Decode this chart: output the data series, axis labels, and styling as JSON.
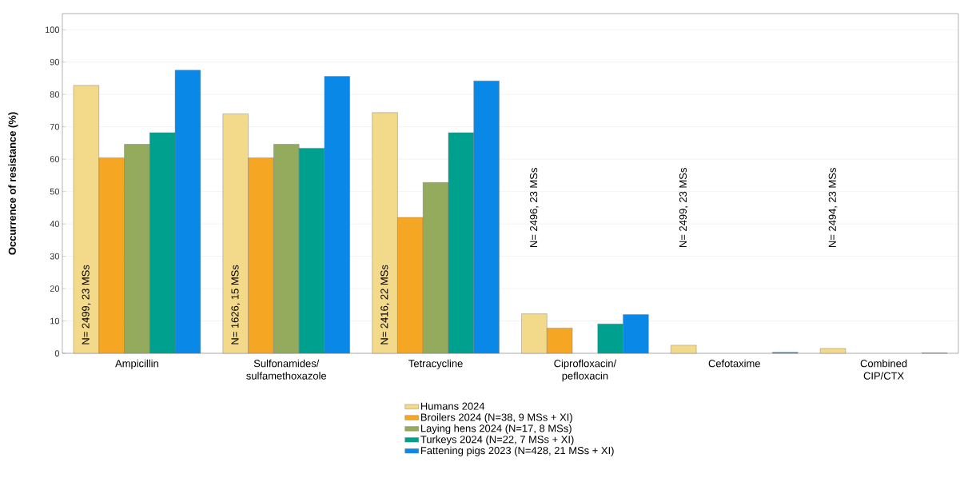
{
  "chart_data": {
    "type": "bar",
    "ylabel": "Occurrence of resistance (%)",
    "categories": [
      "Ampicillin",
      "Sulfonamides/ sulfamethoxazole",
      "Tetracycline",
      "Ciprofloxacin/ pefloxacin",
      "Cefotaxime",
      "Combined CIP/CTX"
    ],
    "series": [
      {
        "name": "Humans 2024",
        "color": "#f3d98a",
        "values": [
          82.8,
          74,
          74.4,
          12.2,
          2.5,
          1.5
        ]
      },
      {
        "name": "Broilers 2024 (N=38, 9 MSs + XI)",
        "color": "#f5a623",
        "values": [
          60.4,
          60.4,
          42,
          7.8,
          null,
          null
        ]
      },
      {
        "name": "Laying hens 2024 (N=17, 8 MSs)",
        "color": "#94ab5e",
        "values": [
          64.6,
          64.6,
          52.8,
          null,
          null,
          null
        ]
      },
      {
        "name": "Turkeys 2024 (N=22, 7 MSs + XI)",
        "color": "#00a08e",
        "values": [
          68.2,
          63.4,
          68.2,
          9.1,
          null,
          null
        ]
      },
      {
        "name": "Fattening pigs 2023 (N=428, 21 MSs + XI)",
        "color": "#0a88e8",
        "values": [
          87.5,
          85.6,
          84.2,
          12,
          0.3,
          0.1
        ]
      }
    ],
    "ylim": [
      0,
      105
    ],
    "yticks": [
      0,
      10,
      20,
      30,
      40,
      50,
      60,
      70,
      80,
      90,
      100
    ],
    "grid": "y",
    "legend": "bottom",
    "annotations": [
      "N= 2499, 23 MSs",
      "N= 1626, 15 MSs",
      "N= 2416, 22 MSs",
      "N= 2496, 23 MSs",
      "N= 2499, 23 MSs",
      "N= 2494, 23 MSs"
    ]
  }
}
